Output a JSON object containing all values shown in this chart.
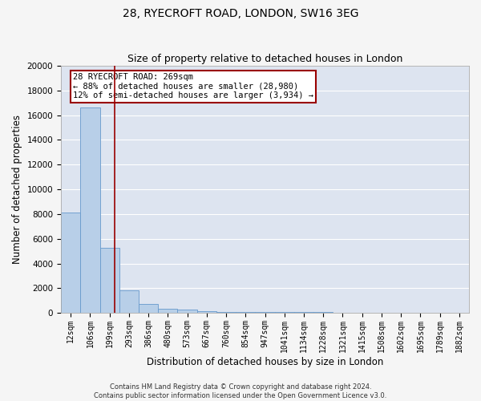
{
  "title": "28, RYECROFT ROAD, LONDON, SW16 3EG",
  "subtitle": "Size of property relative to detached houses in London",
  "xlabel": "Distribution of detached houses by size in London",
  "ylabel": "Number of detached properties",
  "categories": [
    "12sqm",
    "106sqm",
    "199sqm",
    "293sqm",
    "386sqm",
    "480sqm",
    "573sqm",
    "667sqm",
    "760sqm",
    "854sqm",
    "947sqm",
    "1041sqm",
    "1134sqm",
    "1228sqm",
    "1321sqm",
    "1415sqm",
    "1508sqm",
    "1602sqm",
    "1695sqm",
    "1789sqm",
    "1882sqm"
  ],
  "values": [
    8100,
    16600,
    5300,
    1800,
    700,
    350,
    250,
    150,
    100,
    60,
    55,
    50,
    50,
    45,
    40,
    35,
    30,
    25,
    25,
    20,
    15
  ],
  "bar_color": "#b8cfe8",
  "bar_edge_color": "#6699cc",
  "background_color": "#dde4f0",
  "fig_background_color": "#f5f5f5",
  "property_line_color": "#990000",
  "annotation_text": "28 RYECROFT ROAD: 269sqm\n← 88% of detached houses are smaller (28,980)\n12% of semi-detached houses are larger (3,934) →",
  "annotation_box_color": "#ffffff",
  "annotation_box_edge_color": "#990000",
  "footer_text": "Contains HM Land Registry data © Crown copyright and database right 2024.\nContains public sector information licensed under the Open Government Licence v3.0.",
  "ylim": [
    0,
    20000
  ],
  "yticks": [
    0,
    2000,
    4000,
    6000,
    8000,
    10000,
    12000,
    14000,
    16000,
    18000,
    20000
  ],
  "grid_color": "#ffffff",
  "title_fontsize": 10,
  "subtitle_fontsize": 9,
  "axis_label_fontsize": 8.5,
  "tick_fontsize": 7,
  "annotation_fontsize": 7.5,
  "footer_fontsize": 6
}
